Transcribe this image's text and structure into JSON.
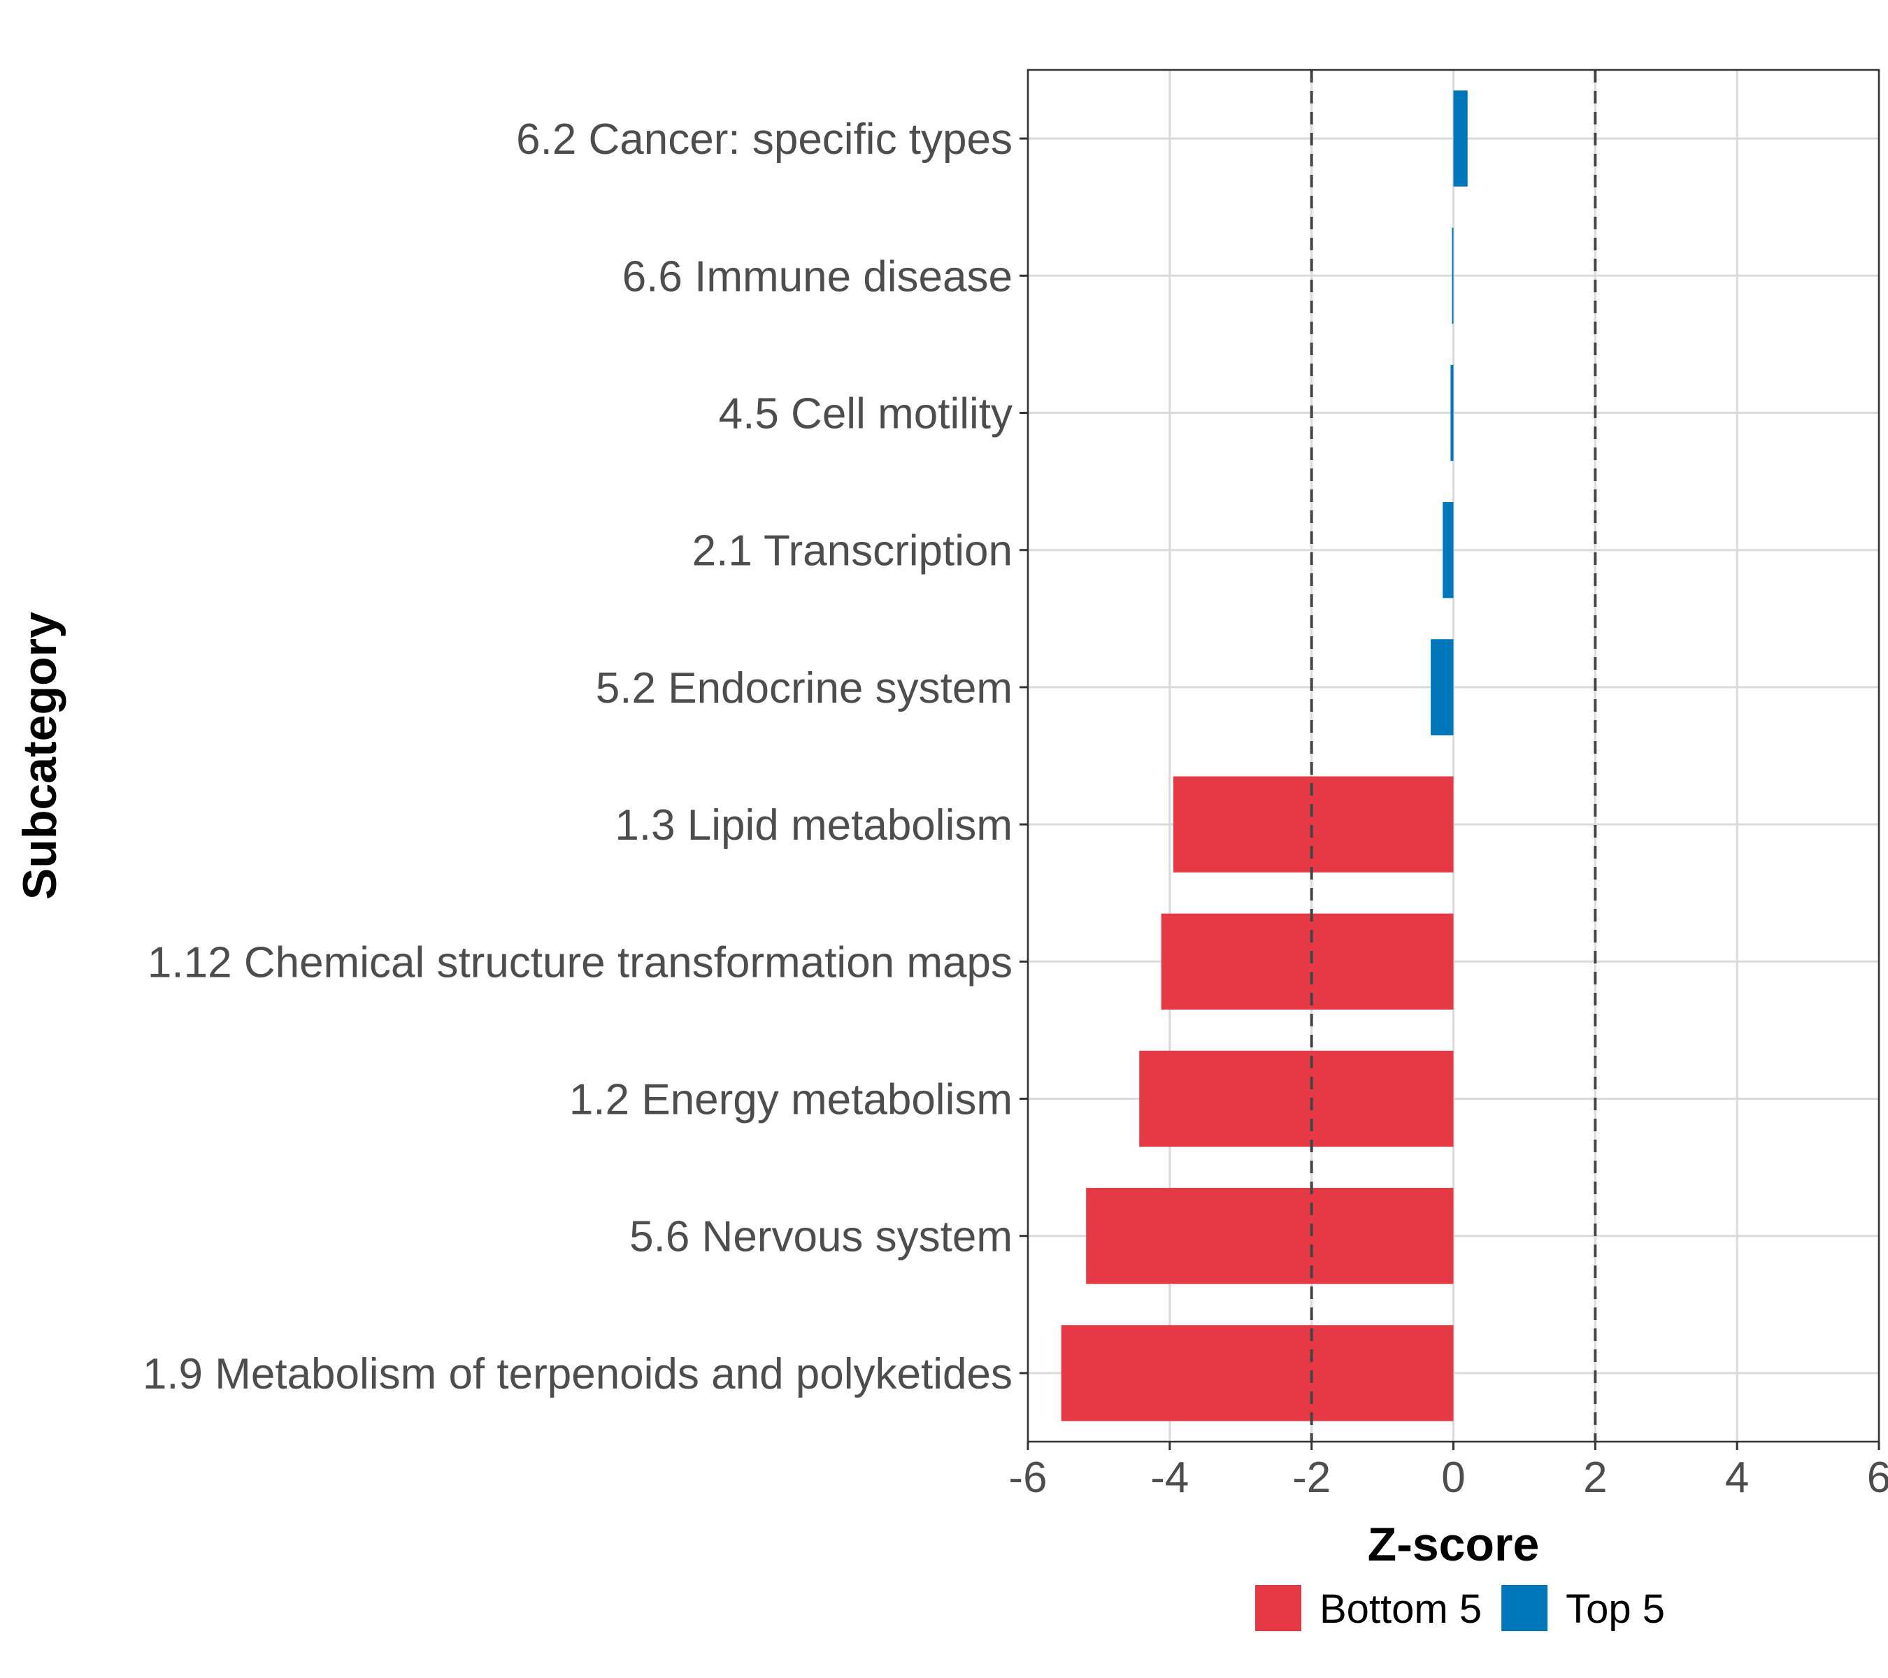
{
  "chart_data": {
    "type": "bar",
    "orientation": "horizontal",
    "title": "",
    "xlabel": "Z-score",
    "ylabel": "Subcategory",
    "xlim": [
      -6,
      6
    ],
    "xticks": [
      -6,
      -4,
      -2,
      0,
      2,
      4,
      6
    ],
    "reference_lines": [
      -2,
      2
    ],
    "grid": true,
    "legend_position": "bottom",
    "categories": [
      "6.2 Cancer: specific types",
      "6.6 Immune disease",
      "4.5 Cell motility",
      "2.1 Transcription",
      "5.2 Endocrine system",
      "1.3 Lipid metabolism",
      "1.12 Chemical structure transformation maps",
      "1.2 Energy metabolism",
      "5.6 Nervous system",
      "1.9 Metabolism of terpenoids and polyketides"
    ],
    "values": [
      0.2,
      -0.02,
      -0.04,
      -0.15,
      -0.32,
      -3.95,
      -4.12,
      -4.43,
      -5.18,
      -5.53
    ],
    "groups": [
      "Top 5",
      "Top 5",
      "Top 5",
      "Top 5",
      "Top 5",
      "Bottom 5",
      "Bottom 5",
      "Bottom 5",
      "Bottom 5",
      "Bottom 5"
    ],
    "legend": [
      {
        "name": "Bottom 5",
        "color": "#e63946"
      },
      {
        "name": "Top 5",
        "color": "#0077bb"
      }
    ]
  }
}
